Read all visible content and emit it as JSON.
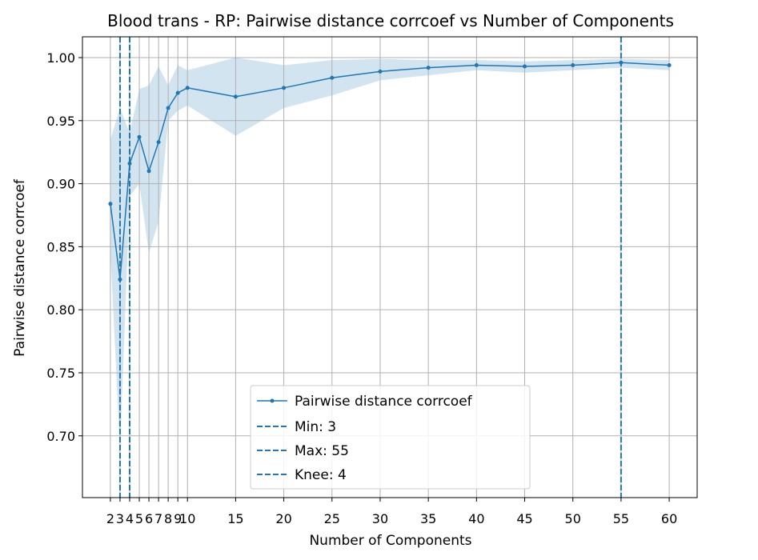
{
  "chart_data": {
    "type": "line",
    "title": "Blood trans - RP: Pairwise distance corrcoef vs Number of Components",
    "xlabel": "Number of Components",
    "ylabel": "Pairwise distance corrcoef",
    "xlim": [
      -0.9,
      62.9
    ],
    "ylim": [
      0.651,
      1.0165
    ],
    "grid": true,
    "legend_position": "lower-center",
    "colors": {
      "line": "#1f77b4",
      "band": "#1f77b4",
      "grid": "#b0b0b0"
    },
    "x_ticks": [
      2,
      3,
      4,
      5,
      6,
      7,
      8,
      9,
      10,
      15,
      20,
      25,
      30,
      35,
      40,
      45,
      50,
      55,
      60
    ],
    "y_ticks": [
      "0.70",
      "0.75",
      "0.80",
      "0.85",
      "0.90",
      "0.95",
      "1.00"
    ],
    "series": [
      {
        "name": "Pairwise distance corrcoef",
        "x": [
          2,
          3,
          4,
          5,
          6,
          7,
          8,
          9,
          10,
          15,
          20,
          25,
          30,
          35,
          40,
          45,
          50,
          55,
          60
        ],
        "values": [
          0.884,
          0.824,
          0.916,
          0.937,
          0.91,
          0.933,
          0.96,
          0.972,
          0.976,
          0.969,
          0.976,
          0.984,
          0.989,
          0.992,
          0.994,
          0.993,
          0.994,
          0.996,
          0.994
        ],
        "lower": [
          0.845,
          0.69,
          0.89,
          0.9,
          0.845,
          0.87,
          0.95,
          0.958,
          0.962,
          0.938,
          0.96,
          0.97,
          0.982,
          0.986,
          0.99,
          0.988,
          0.99,
          0.992,
          0.99
        ],
        "upper": [
          0.935,
          0.96,
          0.94,
          0.975,
          0.978,
          0.993,
          0.978,
          0.994,
          0.99,
          1.0,
          0.994,
          0.998,
          0.999,
          0.998,
          0.998,
          0.997,
          0.998,
          0.999,
          0.998
        ]
      }
    ],
    "vlines": [
      {
        "label": "Min: 3",
        "x": 3
      },
      {
        "label": "Max: 55",
        "x": 55
      },
      {
        "label": "Knee: 4",
        "x": 4
      }
    ]
  }
}
